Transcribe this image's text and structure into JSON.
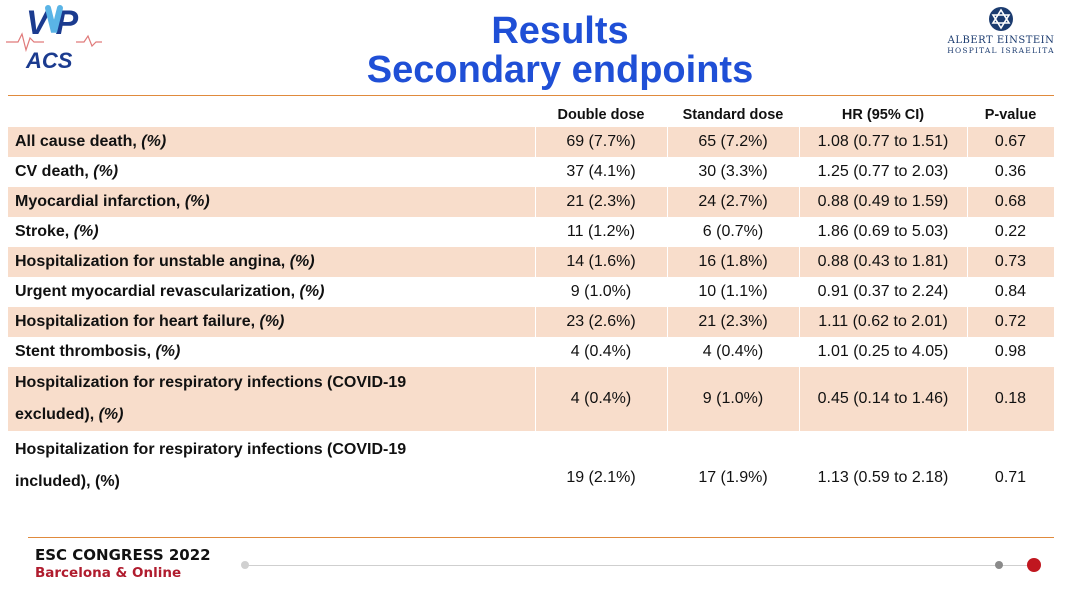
{
  "header": {
    "logo_left": {
      "line1": "V P",
      "line2": "ACS"
    },
    "title_line1": "Results",
    "title_line2": "Secondary endpoints",
    "logo_right": {
      "line1": "ALBERT EINSTEIN",
      "line2": "HOSPITAL ISRAELITA"
    }
  },
  "table": {
    "columns": [
      "",
      "Double dose",
      "Standard dose",
      "HR (95% CI)",
      "P-value"
    ],
    "rows": [
      {
        "label": "All cause death, ",
        "unit": "(%)",
        "double": "69 (7.7%)",
        "standard": "65 (7.2%)",
        "hr": "1.08 (0.77 to 1.51)",
        "p": "0.67"
      },
      {
        "label": "CV death, ",
        "unit": "(%)",
        "double": "37 (4.1%)",
        "standard": "30 (3.3%)",
        "hr": "1.25 (0.77 to 2.03)",
        "p": "0.36"
      },
      {
        "label": "Myocardial infarction, ",
        "unit": "(%)",
        "double": "21 (2.3%)",
        "standard": "24 (2.7%)",
        "hr": "0.88 (0.49 to 1.59)",
        "p": "0.68"
      },
      {
        "label": "Stroke, ",
        "unit": "(%)",
        "double": "11 (1.2%)",
        "standard": "6 (0.7%)",
        "hr": "1.86 (0.69 to 5.03)",
        "p": "0.22"
      },
      {
        "label": "Hospitalization for unstable angina, ",
        "unit": "(%)",
        "double": "14 (1.6%)",
        "standard": "16 (1.8%)",
        "hr": "0.88 (0.43 to 1.81)",
        "p": "0.73"
      },
      {
        "label": "Urgent myocardial revascularization, ",
        "unit": "(%)",
        "double": "9 (1.0%)",
        "standard": "10 (1.1%)",
        "hr": "0.91 (0.37 to 2.24)",
        "p": "0.84"
      },
      {
        "label": "Hospitalization for heart failure, ",
        "unit": "(%)",
        "double": "23 (2.6%)",
        "standard": "21 (2.3%)",
        "hr": "1.11 (0.62 to 2.01)",
        "p": "0.72"
      },
      {
        "label": "Stent thrombosis, ",
        "unit": "(%)",
        "double": "4 (0.4%)",
        "standard": "4 (0.4%)",
        "hr": "1.01 (0.25 to 4.05)",
        "p": "0.98"
      },
      {
        "label_line1": "Hospitalization for respiratory infections (COVID-19",
        "label_line2": "excluded), ",
        "unit": "(%)",
        "double": "4 (0.4%)",
        "standard": "9 (1.0%)",
        "hr": "0.45 (0.14 to 1.46)",
        "p": "0.18"
      },
      {
        "label_line1": "Hospitalization for respiratory infections (COVID-19",
        "label_line2": "included), (%)",
        "double": "19 (2.1%)",
        "standard": "17 (1.9%)",
        "hr": "1.13 (0.59 to 2.18)",
        "p": "0.71"
      }
    ]
  },
  "footer": {
    "line1": "ESC CONGRESS 2022",
    "line2": "Barcelona & Online"
  },
  "colors": {
    "title_blue": "#1f4fd6",
    "row_shade": "#f8ddcb",
    "rule_orange": "#e08a3c",
    "footer_red": "#b01c2e",
    "timeline_dot_red": "#c0171f"
  }
}
